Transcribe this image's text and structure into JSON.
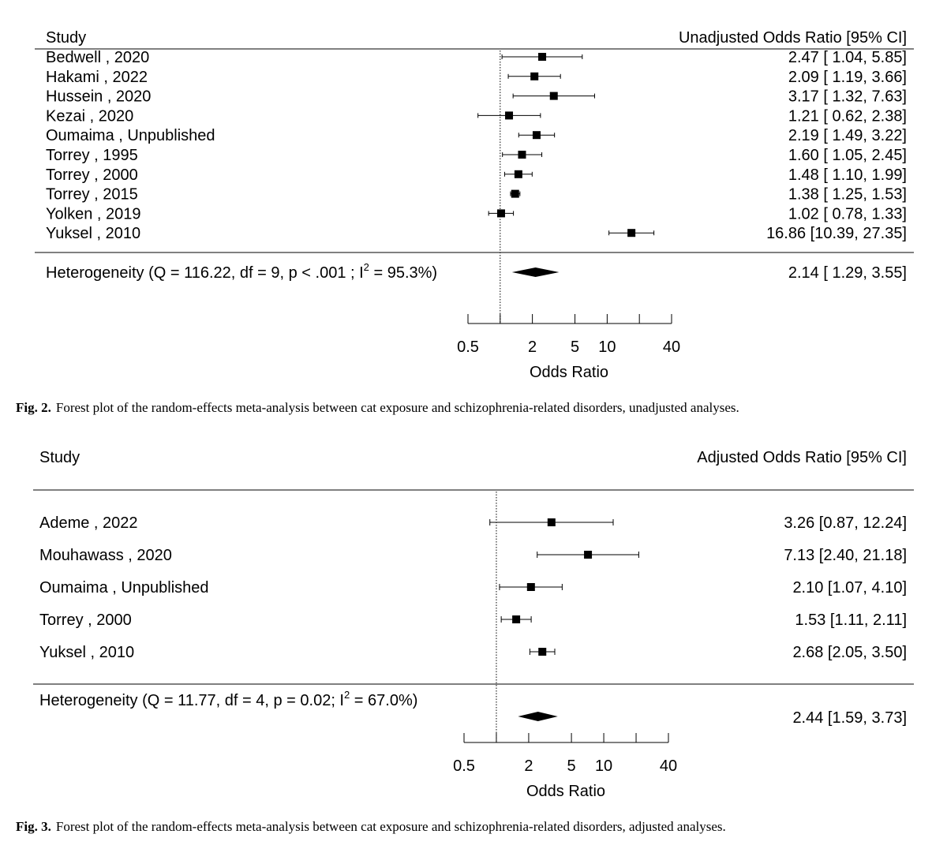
{
  "figures": [
    {
      "caption_label": "Fig. 2.",
      "caption_text": "Forest plot of the random-effects meta-analysis between cat exposure and schizophrenia-related disorders, unadjusted analyses."
    },
    {
      "caption_label": "Fig. 3.",
      "caption_text": "Forest plot of the random-effects meta-analysis between cat exposure and schizophrenia-related disorders, adjusted analyses."
    }
  ],
  "chart_data": [
    {
      "type": "forest",
      "study_header": "Study",
      "ci_header": "Unadjusted Odds Ratio [95% CI]",
      "xlabel": "Odds Ratio",
      "log_scale": true,
      "null_line": 1,
      "xlim": [
        0.5,
        40
      ],
      "ticks": [
        0.5,
        1,
        2,
        5,
        10,
        20,
        40
      ],
      "tick_labels": [
        "0.5",
        "",
        "2",
        "5",
        "10",
        "",
        "40"
      ],
      "rows": [
        {
          "study": "Bedwell , 2020",
          "or": 2.47,
          "lo": 1.04,
          "hi": 5.85,
          "ci_text": "2.47 [ 1.04,  5.85]"
        },
        {
          "study": "Hakami , 2022",
          "or": 2.09,
          "lo": 1.19,
          "hi": 3.66,
          "ci_text": "2.09 [ 1.19,  3.66]"
        },
        {
          "study": "Hussein , 2020",
          "or": 3.17,
          "lo": 1.32,
          "hi": 7.63,
          "ci_text": "3.17 [ 1.32,  7.63]"
        },
        {
          "study": "Kezai , 2020",
          "or": 1.21,
          "lo": 0.62,
          "hi": 2.38,
          "ci_text": "1.21 [ 0.62,  2.38]"
        },
        {
          "study": "Oumaima , Unpublished",
          "or": 2.19,
          "lo": 1.49,
          "hi": 3.22,
          "ci_text": "2.19 [ 1.49,  3.22]"
        },
        {
          "study": "Torrey , 1995",
          "or": 1.6,
          "lo": 1.05,
          "hi": 2.45,
          "ci_text": "1.60 [ 1.05,  2.45]"
        },
        {
          "study": "Torrey , 2000",
          "or": 1.48,
          "lo": 1.1,
          "hi": 1.99,
          "ci_text": "1.48 [ 1.10,  1.99]"
        },
        {
          "study": "Torrey , 2015",
          "or": 1.38,
          "lo": 1.25,
          "hi": 1.53,
          "ci_text": "1.38 [ 1.25,  1.53]"
        },
        {
          "study": "Yolken , 2019",
          "or": 1.02,
          "lo": 0.78,
          "hi": 1.33,
          "ci_text": "1.02 [ 0.78,  1.33]"
        },
        {
          "study": "Yuksel , 2010",
          "or": 16.86,
          "lo": 10.39,
          "hi": 27.35,
          "ci_text": "16.86 [10.39, 27.35]"
        }
      ],
      "summary": {
        "label_before": "Heterogeneity (Q = 116.22, df = 9, p < .001 ; I",
        "superscript": "2",
        "label_after": " = 95.3%)",
        "or": 2.14,
        "lo": 1.29,
        "hi": 3.55,
        "ci_text": "2.14 [ 1.29,  3.55]"
      }
    },
    {
      "type": "forest",
      "study_header": "Study",
      "ci_header": "Adjusted Odds Ratio [95% CI]",
      "xlabel": "Odds Ratio",
      "log_scale": true,
      "null_line": 1,
      "xlim": [
        0.5,
        40
      ],
      "ticks": [
        0.5,
        1,
        2,
        5,
        10,
        20,
        40
      ],
      "tick_labels": [
        "0.5",
        "",
        "2",
        "5",
        "10",
        "",
        "40"
      ],
      "rows": [
        {
          "study": "Ademe , 2022",
          "or": 3.26,
          "lo": 0.87,
          "hi": 12.24,
          "ci_text": "3.26 [0.87, 12.24]"
        },
        {
          "study": "Mouhawass , 2020",
          "or": 7.13,
          "lo": 2.4,
          "hi": 21.18,
          "ci_text": "7.13 [2.40, 21.18]"
        },
        {
          "study": "Oumaima , Unpublished",
          "or": 2.1,
          "lo": 1.07,
          "hi": 4.1,
          "ci_text": "2.10 [1.07,  4.10]"
        },
        {
          "study": "Torrey , 2000",
          "or": 1.53,
          "lo": 1.11,
          "hi": 2.11,
          "ci_text": "1.53 [1.11,  2.11]"
        },
        {
          "study": "Yuksel , 2010",
          "or": 2.68,
          "lo": 2.05,
          "hi": 3.5,
          "ci_text": "2.68 [2.05,  3.50]"
        }
      ],
      "summary": {
        "label_before": "Heterogeneity (Q = 11.77, df = 4, p = 0.02; I",
        "superscript": "2",
        "label_after": " = 67.0%)",
        "or": 2.44,
        "lo": 1.59,
        "hi": 3.73,
        "ci_text": "2.44 [1.59,  3.73]"
      }
    }
  ]
}
